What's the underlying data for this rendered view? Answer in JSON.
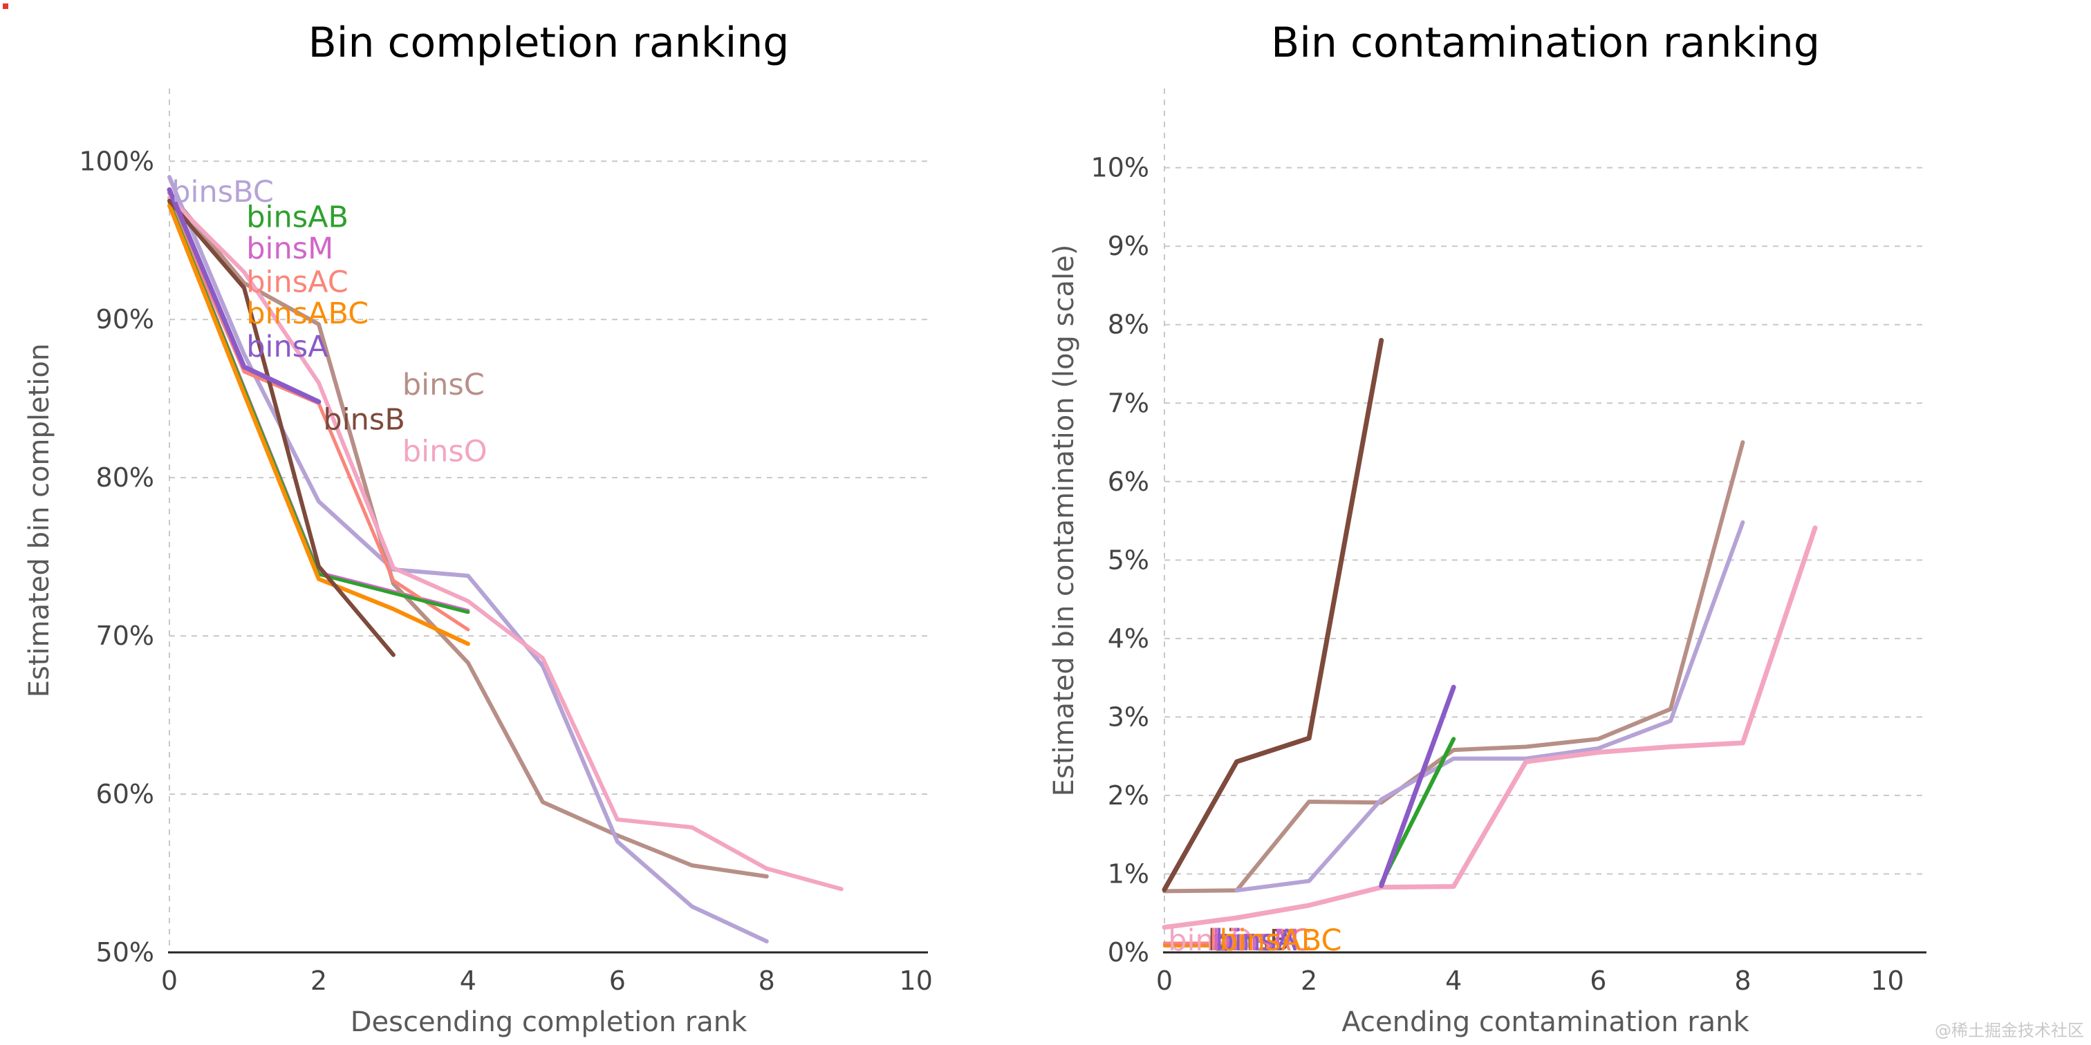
{
  "page": {
    "background": "#ffffff",
    "watermark": "@稀土掘金技术社区"
  },
  "chart_data": [
    {
      "type": "line",
      "title": "Bin completion ranking",
      "xlabel": "Descending completion rank",
      "ylabel": "Estimated bin completion",
      "xlim": [
        0,
        10.16
      ],
      "ylim": [
        50,
        104.6
      ],
      "xticks": [
        0,
        2,
        4,
        6,
        8,
        10
      ],
      "yticks": [
        50,
        60,
        70,
        80,
        90,
        100
      ],
      "ytick_suffix": "%",
      "grid": true,
      "legend": "inline-labels",
      "series": [
        {
          "name": "binsM",
          "color": "#d166c9",
          "width": 5,
          "points": [
            [
              0,
              97.5
            ],
            [
              1,
              85.7
            ],
            [
              2,
              74.0
            ],
            [
              3,
              72.8
            ],
            [
              4,
              71.6
            ]
          ]
        },
        {
          "name": "binsC",
          "color": "#b78f87",
          "width": 6,
          "points": [
            [
              0,
              98.0
            ],
            [
              1,
              92.3
            ],
            [
              2,
              89.7
            ],
            [
              3,
              73.3
            ],
            [
              4,
              68.3
            ],
            [
              5,
              59.5
            ],
            [
              6,
              57.4
            ],
            [
              7,
              55.5
            ],
            [
              8,
              54.8
            ]
          ]
        },
        {
          "name": "binsBC",
          "color": "#b5a3d6",
          "width": 6,
          "points": [
            [
              0,
              99.0
            ],
            [
              1,
              87.8
            ],
            [
              2,
              78.5
            ],
            [
              3,
              74.2
            ],
            [
              4,
              73.8
            ],
            [
              5,
              68.1
            ],
            [
              6,
              57.0
            ],
            [
              7,
              52.9
            ],
            [
              8,
              50.7
            ]
          ]
        },
        {
          "name": "binsAC",
          "color": "#fa857a",
          "width": 5,
          "points": [
            [
              0,
              97.6
            ],
            [
              1,
              86.7
            ],
            [
              2,
              84.7
            ],
            [
              3,
              73.5
            ],
            [
              4,
              70.4
            ]
          ]
        },
        {
          "name": "binsAB",
          "color": "#2da12d",
          "width": 5,
          "points": [
            [
              0,
              97.4
            ],
            [
              1,
              85.6
            ],
            [
              2,
              73.9
            ],
            [
              3,
              72.7
            ],
            [
              4,
              71.5
            ]
          ]
        },
        {
          "name": "binsABC",
          "color": "#fb8d06",
          "width": 6,
          "points": [
            [
              0,
              97.2
            ],
            [
              1,
              85.3
            ],
            [
              2,
              73.6
            ],
            [
              3,
              71.7
            ],
            [
              4,
              69.5
            ]
          ]
        },
        {
          "name": "binsO",
          "color": "#f3a5c2",
          "width": 6,
          "points": [
            [
              0,
              97.7
            ],
            [
              1,
              93.0
            ],
            [
              2,
              86.0
            ],
            [
              3,
              74.3
            ],
            [
              4,
              72.2
            ],
            [
              5,
              68.6
            ],
            [
              6,
              58.4
            ],
            [
              7,
              57.9
            ],
            [
              8,
              55.3
            ],
            [
              9,
              54.0
            ]
          ]
        },
        {
          "name": "binsB",
          "color": "#7d4a3c",
          "width": 6,
          "points": [
            [
              0,
              97.5
            ],
            [
              1,
              92.0
            ],
            [
              2,
              74.4
            ],
            [
              3,
              68.8
            ]
          ]
        },
        {
          "name": "binsA",
          "color": "#8a5bc7",
          "width": 7,
          "points": [
            [
              0,
              98.2
            ],
            [
              1,
              87.0
            ],
            [
              2,
              84.8
            ]
          ]
        }
      ],
      "inline_labels": [
        {
          "text": "binsBC",
          "color": "#b5a3d6",
          "x": 0.03,
          "y": 98.1
        },
        {
          "text": "binsAB",
          "color": "#2da12d",
          "x": 1.03,
          "y": 96.5
        },
        {
          "text": "binsM",
          "color": "#d166c9",
          "x": 1.03,
          "y": 94.5
        },
        {
          "text": "binsAC",
          "color": "#fa857a",
          "x": 1.03,
          "y": 92.4
        },
        {
          "text": "binsABC",
          "color": "#fb8d06",
          "x": 1.03,
          "y": 90.4
        },
        {
          "text": "binsA",
          "color": "#8a5bc7",
          "x": 1.03,
          "y": 88.3
        },
        {
          "text": "binsC",
          "color": "#b78f87",
          "x": 3.12,
          "y": 85.9
        },
        {
          "text": "binsB",
          "color": "#7d4a3c",
          "x": 2.06,
          "y": 83.7
        },
        {
          "text": "binsO",
          "color": "#f3a5c2",
          "x": 3.12,
          "y": 81.7
        }
      ]
    },
    {
      "type": "line",
      "title": "Bin contamination ranking",
      "xlabel": "Acending contamination rank",
      "ylabel": "Estimated bin contamination (log scale)",
      "xlim": [
        0,
        10.54
      ],
      "ylim": [
        0,
        11.01
      ],
      "xticks": [
        0,
        2,
        4,
        6,
        8,
        10
      ],
      "yticks": [
        0,
        1,
        2,
        3,
        4,
        5,
        6,
        7,
        8,
        9,
        10
      ],
      "ytick_suffix": "%",
      "grid": true,
      "legend": "inline-labels",
      "series": [
        {
          "name": "binsM",
          "color": "#d166c9",
          "width": 4,
          "points": [
            [
              0,
              0.1
            ],
            [
              1,
              0.1
            ]
          ]
        },
        {
          "name": "binsAC",
          "color": "#fa857a",
          "width": 4,
          "points": [
            [
              0,
              0.12
            ],
            [
              1,
              0.12
            ]
          ]
        },
        {
          "name": "binsABC",
          "color": "#fb8d06",
          "width": 4,
          "points": [
            [
              0,
              0.08
            ],
            [
              1,
              0.08
            ]
          ]
        },
        {
          "name": "binsC",
          "color": "#b78f87",
          "width": 6,
          "points": [
            [
              0,
              0.78
            ],
            [
              1,
              0.79
            ],
            [
              2,
              1.92
            ],
            [
              3,
              1.91
            ],
            [
              4,
              2.58
            ],
            [
              5,
              2.62
            ],
            [
              6,
              2.72
            ],
            [
              7,
              3.1
            ],
            [
              8,
              6.5
            ]
          ]
        },
        {
          "name": "binsBC",
          "color": "#b5a3d6",
          "width": 6,
          "points": [
            [
              1,
              0.79
            ],
            [
              2,
              0.91
            ],
            [
              3,
              1.95
            ],
            [
              4,
              2.47
            ],
            [
              5,
              2.47
            ],
            [
              6,
              2.6
            ],
            [
              7,
              2.95
            ],
            [
              8,
              5.48
            ]
          ]
        },
        {
          "name": "binsAB",
          "color": "#2da12d",
          "width": 6,
          "points": [
            [
              3,
              0.88
            ],
            [
              4,
              2.72
            ]
          ]
        },
        {
          "name": "binsO",
          "color": "#f3a5c2",
          "width": 7,
          "points": [
            [
              0,
              0.32
            ],
            [
              1,
              0.44
            ],
            [
              2,
              0.6
            ],
            [
              3,
              0.83
            ],
            [
              4,
              0.84
            ],
            [
              5,
              2.43
            ],
            [
              6,
              2.55
            ],
            [
              7,
              2.62
            ],
            [
              8,
              2.67
            ],
            [
              9,
              5.41
            ]
          ]
        },
        {
          "name": "binsB",
          "color": "#7d4a3c",
          "width": 7,
          "points": [
            [
              0,
              0.8
            ],
            [
              1,
              2.43
            ],
            [
              2,
              2.73
            ],
            [
              3,
              7.8
            ]
          ]
        },
        {
          "name": "binsA",
          "color": "#8a5bc7",
          "width": 7,
          "points": [
            [
              3,
              0.85
            ],
            [
              4,
              3.38
            ]
          ]
        }
      ],
      "inline_labels": [
        {
          "text": "binsO",
          "color": "#f3a5c2",
          "x": 0.05,
          "y": 0.16
        },
        {
          "text": "binsB",
          "color": "#7d4a3c",
          "x": 0.6,
          "y": 0.16
        },
        {
          "text": "binsAC",
          "color": "#fa857a",
          "x": 0.62,
          "y": 0.16
        },
        {
          "text": "binsM",
          "color": "#d166c9",
          "x": 0.66,
          "y": 0.16
        },
        {
          "text": "binsA",
          "color": "#8a5bc7",
          "x": 0.7,
          "y": 0.16
        },
        {
          "text": "binsABC",
          "color": "#fb8d06",
          "x": 0.76,
          "y": 0.16
        }
      ]
    }
  ]
}
